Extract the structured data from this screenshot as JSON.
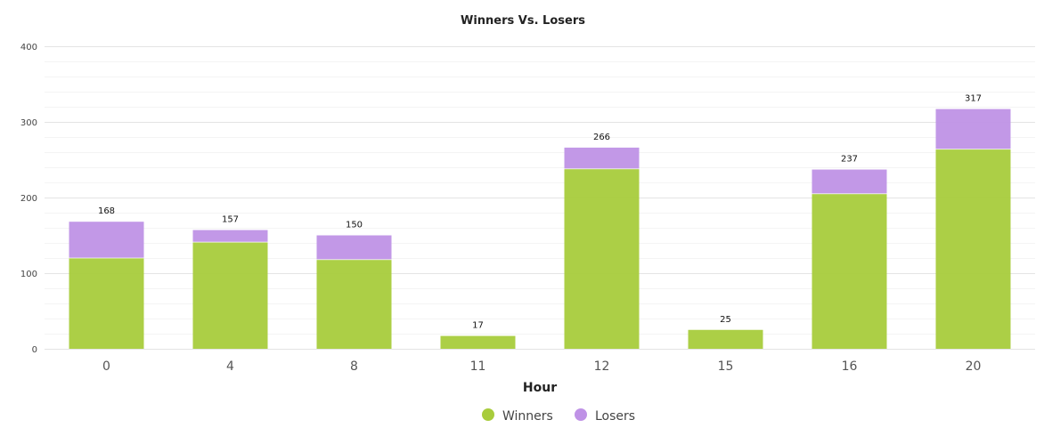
{
  "chart_data": {
    "type": "bar",
    "stacked": true,
    "title": "Winners Vs. Losers",
    "xlabel": "Hour",
    "ylabel": "",
    "ylim": [
      0,
      400
    ],
    "yticks": [
      0,
      100,
      200,
      300,
      400
    ],
    "categories": [
      "0",
      "4",
      "8",
      "11",
      "12",
      "15",
      "16",
      "20"
    ],
    "series": [
      {
        "name": "Winners",
        "color": "#a8cc3c",
        "values": [
          120,
          141,
          118,
          17,
          238,
          25,
          205,
          264
        ]
      },
      {
        "name": "Losers",
        "color": "#bf92e6",
        "values": [
          48,
          16,
          32,
          0,
          28,
          0,
          32,
          53
        ]
      }
    ],
    "totals": [
      "168",
      "157",
      "150",
      "17",
      "266",
      "25",
      "237",
      "317"
    ],
    "grid": true,
    "legend_position": "bottom-center"
  }
}
